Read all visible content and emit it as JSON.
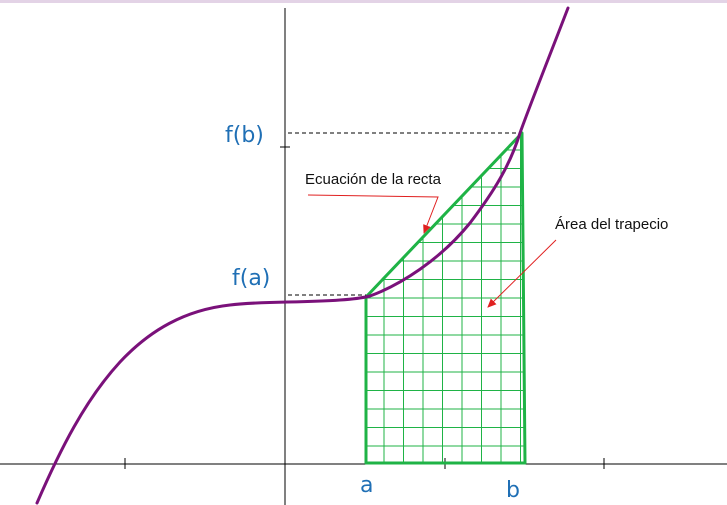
{
  "labels": {
    "fb": "f(b)",
    "fa": "f(a)",
    "a": "a",
    "b": "b",
    "line_equation": "Ecuación de la recta",
    "trapezoid_area": "Área del trapecio"
  },
  "colors": {
    "curve": "#7a117a",
    "trapezoid": "#1fb346",
    "math_text": "#1f6fb5",
    "axis": "#000000",
    "arrow": "#e02020",
    "top_bar": "#e3d3e6"
  }
}
